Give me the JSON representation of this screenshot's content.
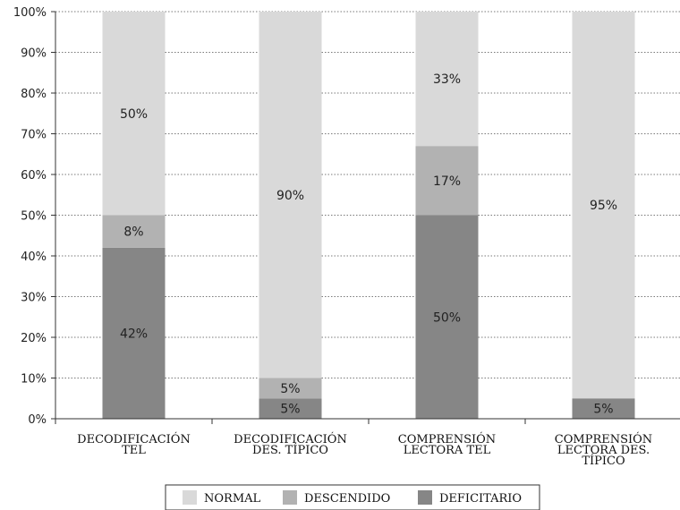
{
  "chart_data": {
    "type": "bar",
    "stacked": true,
    "categories": [
      [
        "DECODIFICACIÓN",
        "TEL"
      ],
      [
        "DECODIFICACIÓN",
        "DES. TÍPICO"
      ],
      [
        "COMPRENSIÓN",
        "LECTORA TEL"
      ],
      [
        "COMPRENSIÓN",
        "LECTORA DES.",
        "TÍPICO"
      ]
    ],
    "series": [
      {
        "name": "DEFICITARIO",
        "color": "#868686",
        "values": [
          42,
          5,
          50,
          5
        ],
        "labels": [
          "42%",
          "5%",
          "50%",
          "5%"
        ]
      },
      {
        "name": "DESCENDIDO",
        "color": "#b2b2b2",
        "values": [
          8,
          5,
          17,
          0
        ],
        "labels": [
          "8%",
          "5%",
          "17%",
          ""
        ]
      },
      {
        "name": "NORMAL",
        "color": "#d9d9d9",
        "values": [
          50,
          90,
          33,
          95
        ],
        "labels": [
          "50%",
          "90%",
          "33%",
          "95%"
        ]
      }
    ],
    "legend_order": [
      "NORMAL",
      "DESCENDIDO",
      "DEFICITARIO"
    ],
    "ylim": [
      0,
      100
    ],
    "yticks": [
      "0%",
      "10%",
      "20%",
      "30%",
      "40%",
      "50%",
      "60%",
      "70%",
      "80%",
      "90%",
      "100%"
    ],
    "grid": "horizontal dotted",
    "legend_position": "bottom"
  }
}
